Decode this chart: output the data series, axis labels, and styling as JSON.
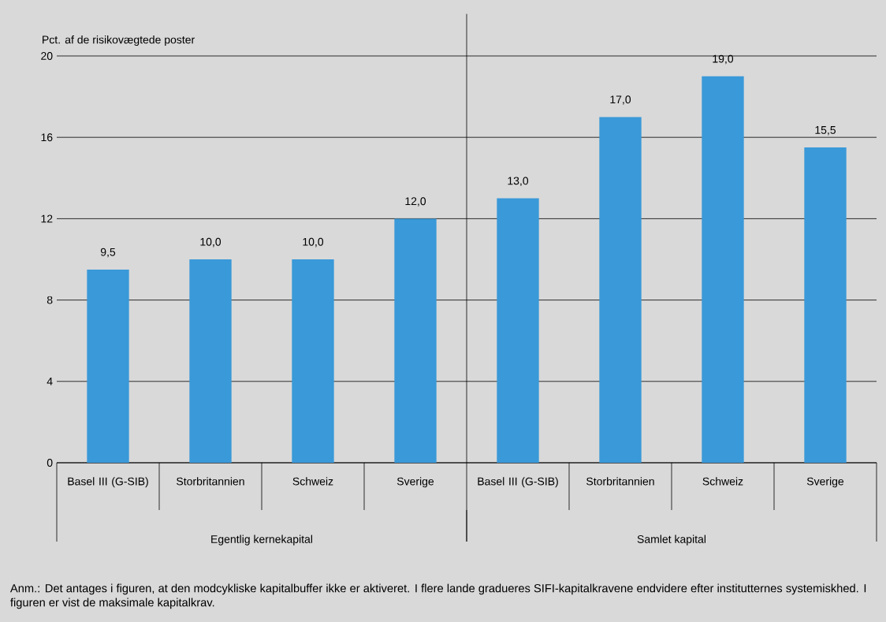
{
  "chart_data": {
    "type": "bar",
    "ylabel": "Pct. af de risikovægtede poster",
    "categories": [
      "Basel III (G-SIB)",
      "Storbritannien",
      "Schweiz",
      "Sverige",
      "Basel III (G-SIB)",
      "Storbritannien",
      "Schweiz",
      "Sverige"
    ],
    "values": [
      9.5,
      10,
      10,
      12,
      13,
      17,
      19,
      15.5
    ],
    "value_labels": [
      "9,5",
      "10,0",
      "10,0",
      "12,0",
      "13,0",
      "17,0",
      "19,0",
      "15,5"
    ],
    "color": "#3a99d8",
    "ylim": [
      0,
      20
    ],
    "yticks": [
      0,
      4,
      8,
      12,
      16,
      20
    ],
    "grid": "y",
    "annotations": [
      "Egentlig kernekapital",
      "Samlet kapital",
      "Anm.: Det antages i figuren, at den modcykliske kapitalbuffer ikke er aktiveret. I flere lande gradueres SIFI-kapitalkravene endvidere efter institutternes systemiskhed. I figuren er vist de maksimale kapitalkrav."
    ]
  }
}
